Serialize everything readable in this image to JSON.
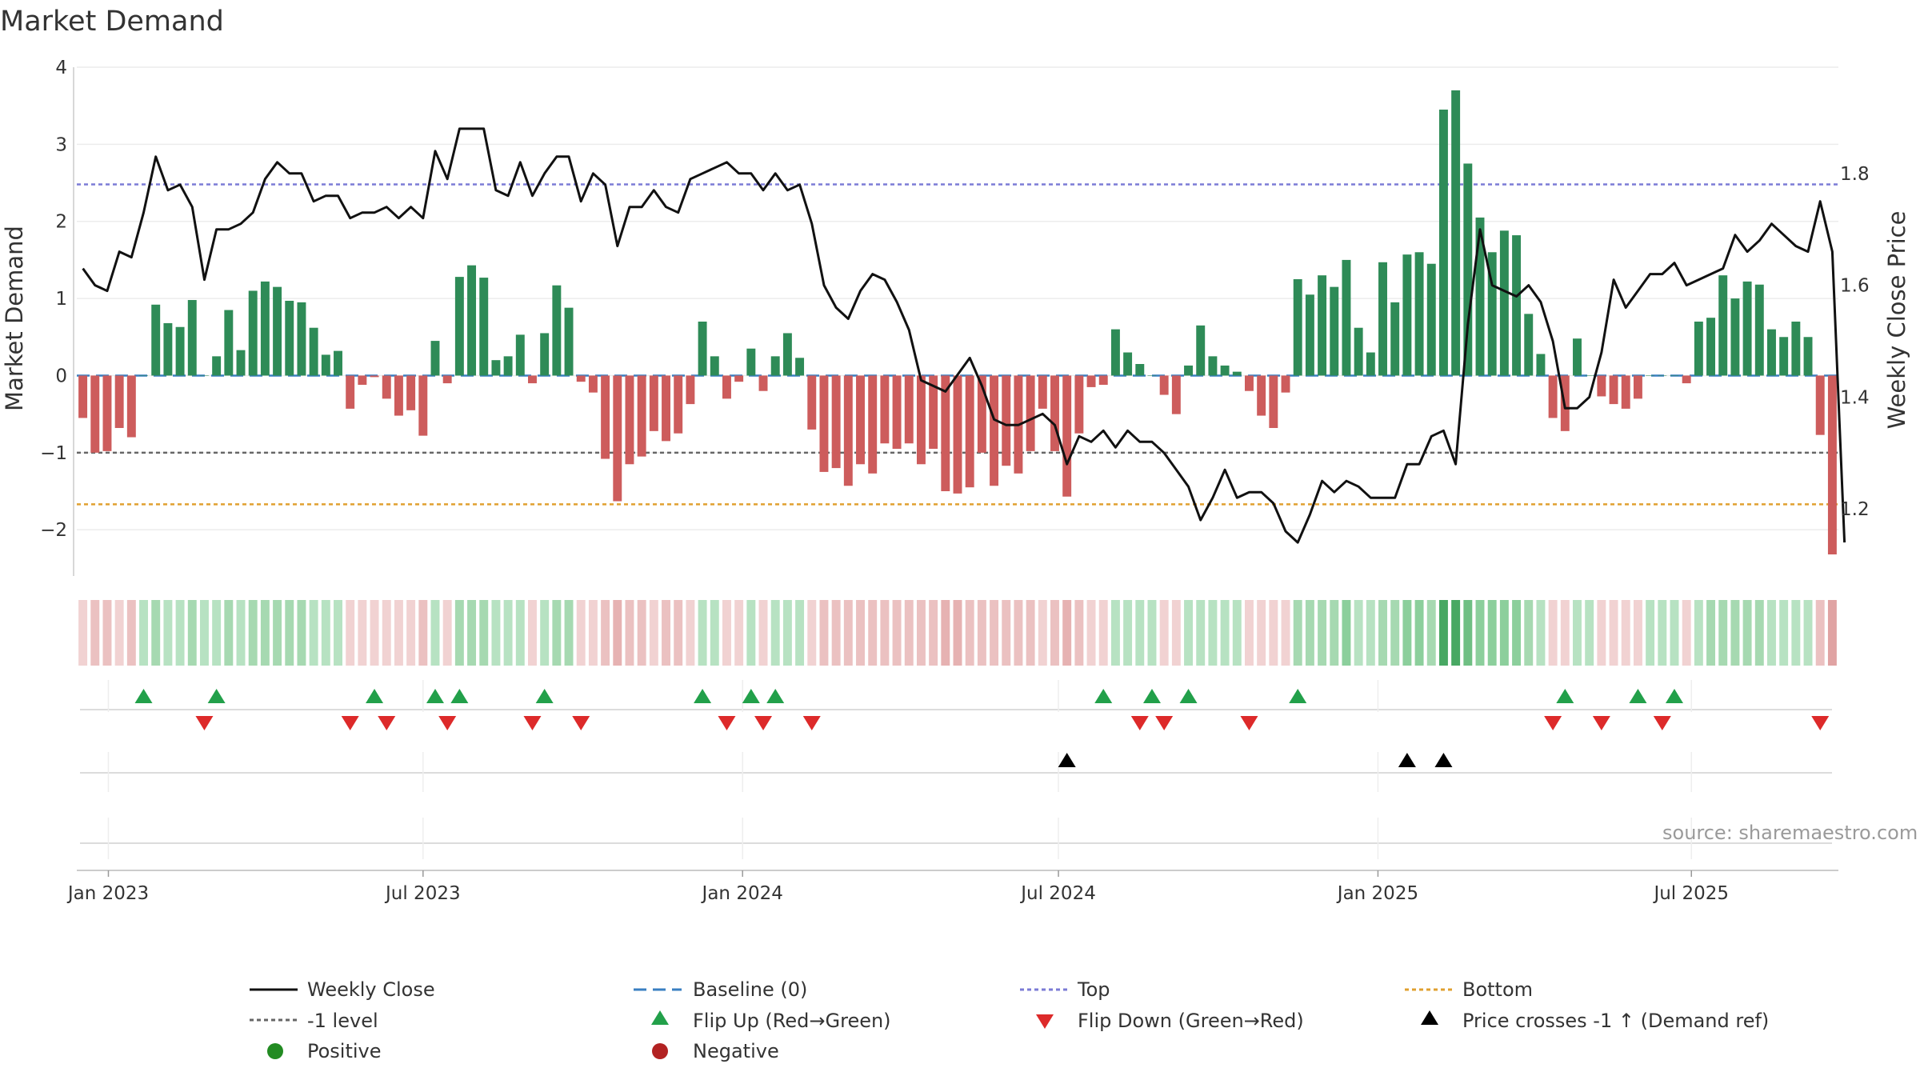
{
  "chart_data": {
    "type": "bar+line",
    "title": "Market Demand",
    "ylabel": "Market Demand",
    "y2label": "Weekly Close Price",
    "ylim": [
      -2.6,
      4.0
    ],
    "y2lim": [
      1.08,
      1.99
    ],
    "yticks": [
      "4",
      "3",
      "2",
      "1",
      "0",
      "−1",
      "−2"
    ],
    "yticks_values": [
      4,
      3,
      2,
      1,
      0,
      -1,
      -2
    ],
    "y2ticks": [
      "1.8",
      "1.6",
      "1.4",
      "1.2"
    ],
    "y2ticks_values": [
      1.8,
      1.6,
      1.4,
      1.2
    ],
    "x_start": "2022-12-16",
    "x_interval_days": 7,
    "xticks": [
      {
        "label": "Jan 2023",
        "index": 2.1
      },
      {
        "label": "Jul 2023",
        "index": 28.0
      },
      {
        "label": "Jan 2024",
        "index": 54.3
      },
      {
        "label": "Jul 2024",
        "index": 80.3
      },
      {
        "label": "Jan 2025",
        "index": 106.6
      },
      {
        "label": "Jul 2025",
        "index": 132.4
      }
    ],
    "reference_lines": {
      "top": 2.48,
      "bottom": -1.67,
      "minus_one": -1.0,
      "baseline": 0
    },
    "demand": [
      -0.55,
      -1.0,
      -0.98,
      -0.68,
      -0.8,
      0.0,
      0.92,
      0.68,
      0.63,
      0.98,
      0.0,
      0.25,
      0.85,
      0.33,
      1.1,
      1.22,
      1.15,
      0.97,
      0.95,
      0.62,
      0.27,
      0.32,
      -0.43,
      -0.12,
      -0.02,
      -0.3,
      -0.52,
      -0.45,
      -0.78,
      0.45,
      -0.1,
      1.28,
      1.43,
      1.27,
      0.2,
      0.25,
      0.53,
      -0.1,
      0.55,
      1.17,
      0.88,
      -0.08,
      -0.22,
      -1.08,
      -1.63,
      -1.15,
      -1.05,
      -0.72,
      -0.85,
      -0.75,
      -0.37,
      0.7,
      0.25,
      -0.3,
      -0.08,
      0.35,
      -0.2,
      0.25,
      0.55,
      0.23,
      -0.7,
      -1.25,
      -1.2,
      -1.43,
      -1.15,
      -1.27,
      -0.88,
      -0.95,
      -0.88,
      -1.15,
      -0.95,
      -1.5,
      -1.53,
      -1.45,
      -1.0,
      -1.43,
      -1.17,
      -1.27,
      -0.98,
      -0.43,
      -0.98,
      -1.57,
      -0.75,
      -0.15,
      -0.12,
      0.6,
      0.3,
      0.15,
      0.0,
      -0.25,
      -0.5,
      0.13,
      0.65,
      0.25,
      0.13,
      0.05,
      -0.2,
      -0.52,
      -0.68,
      -0.22,
      1.25,
      1.05,
      1.3,
      1.15,
      1.5,
      0.62,
      0.3,
      1.47,
      0.95,
      1.57,
      1.6,
      1.45,
      3.45,
      3.7,
      2.75,
      2.05,
      1.6,
      1.88,
      1.82,
      0.8,
      0.28,
      -0.55,
      -0.72,
      0.48,
      0.0,
      -0.27,
      -0.37,
      -0.43,
      -0.3,
      0.0,
      0.0,
      0.0,
      -0.1,
      0.7,
      0.75,
      1.3,
      1.0,
      1.22,
      1.18,
      0.6,
      0.5,
      0.7,
      0.5,
      -0.77,
      -2.32
    ],
    "close": [
      1.63,
      1.6,
      1.59,
      1.66,
      1.65,
      1.73,
      1.83,
      1.77,
      1.78,
      1.74,
      1.61,
      1.7,
      1.7,
      1.71,
      1.73,
      1.79,
      1.82,
      1.8,
      1.8,
      1.75,
      1.76,
      1.76,
      1.72,
      1.73,
      1.73,
      1.74,
      1.72,
      1.74,
      1.72,
      1.84,
      1.79,
      1.88,
      1.88,
      1.88,
      1.77,
      1.76,
      1.82,
      1.76,
      1.8,
      1.83,
      1.83,
      1.75,
      1.8,
      1.78,
      1.67,
      1.74,
      1.74,
      1.77,
      1.74,
      1.73,
      1.79,
      1.8,
      1.81,
      1.82,
      1.8,
      1.8,
      1.77,
      1.8,
      1.77,
      1.78,
      1.71,
      1.6,
      1.56,
      1.54,
      1.59,
      1.62,
      1.61,
      1.57,
      1.52,
      1.43,
      1.42,
      1.41,
      1.44,
      1.47,
      1.42,
      1.36,
      1.35,
      1.35,
      1.36,
      1.37,
      1.35,
      1.28,
      1.33,
      1.32,
      1.34,
      1.31,
      1.34,
      1.32,
      1.32,
      1.3,
      1.27,
      1.24,
      1.18,
      1.22,
      1.27,
      1.22,
      1.23,
      1.23,
      1.21,
      1.16,
      1.14,
      1.19,
      1.25,
      1.23,
      1.25,
      1.24,
      1.22,
      1.22,
      1.22,
      1.28,
      1.28,
      1.33,
      1.34,
      1.28,
      1.53,
      1.7,
      1.6,
      1.59,
      1.58,
      1.6,
      1.57,
      1.5,
      1.38,
      1.38,
      1.4,
      1.48,
      1.61,
      1.56,
      1.59,
      1.62,
      1.62,
      1.64,
      1.6,
      1.61,
      1.62,
      1.63,
      1.69,
      1.66,
      1.68,
      1.71,
      1.69,
      1.67,
      1.66,
      1.75,
      1.66,
      1.14
    ],
    "flip_up_indices": [
      5,
      11,
      24,
      29,
      31,
      38,
      51,
      55,
      57,
      84,
      88,
      91,
      100,
      122,
      128,
      131
    ],
    "flip_down_indices": [
      10,
      22,
      25,
      30,
      37,
      41,
      53,
      56,
      60,
      87,
      89,
      96,
      121,
      125,
      130,
      143
    ],
    "price_cross_indices": [
      81,
      109,
      112
    ],
    "heat_green": [
      "#b7e2c2",
      "#a6d9b1",
      "#8ccf9c",
      "#6fbf83",
      "#48a863"
    ],
    "heat_red": [
      "#f1d2d2",
      "#ebc1c1",
      "#e6b2b2",
      "#e0a3a3",
      "#d88f8f"
    ]
  },
  "colors": {
    "positive_bar": "#2e8b57",
    "negative_bar": "#cd5c5c",
    "line": "#111111",
    "top_line": "#7b7bd6",
    "bottom_line": "#e0a030",
    "minus_one_line": "#666666",
    "baseline": "#3a7fc2",
    "flip_up": "#22a04a",
    "flip_down": "#dd2a2a",
    "positive_dot": "#228b22",
    "negative_dot": "#b22222"
  },
  "legend": {
    "weekly_close": "Weekly Close",
    "baseline": "Baseline (0)",
    "top": "Top",
    "bottom": "Bottom",
    "minus_one": "-1 level",
    "flip_up": "Flip Up (Red→Green)",
    "flip_down": "Flip Down (Green→Red)",
    "price_crosses": "Price crosses -1 ↑ (Demand ref)",
    "positive": "Positive",
    "negative": "Negative"
  },
  "source": "source: sharemaestro.com"
}
